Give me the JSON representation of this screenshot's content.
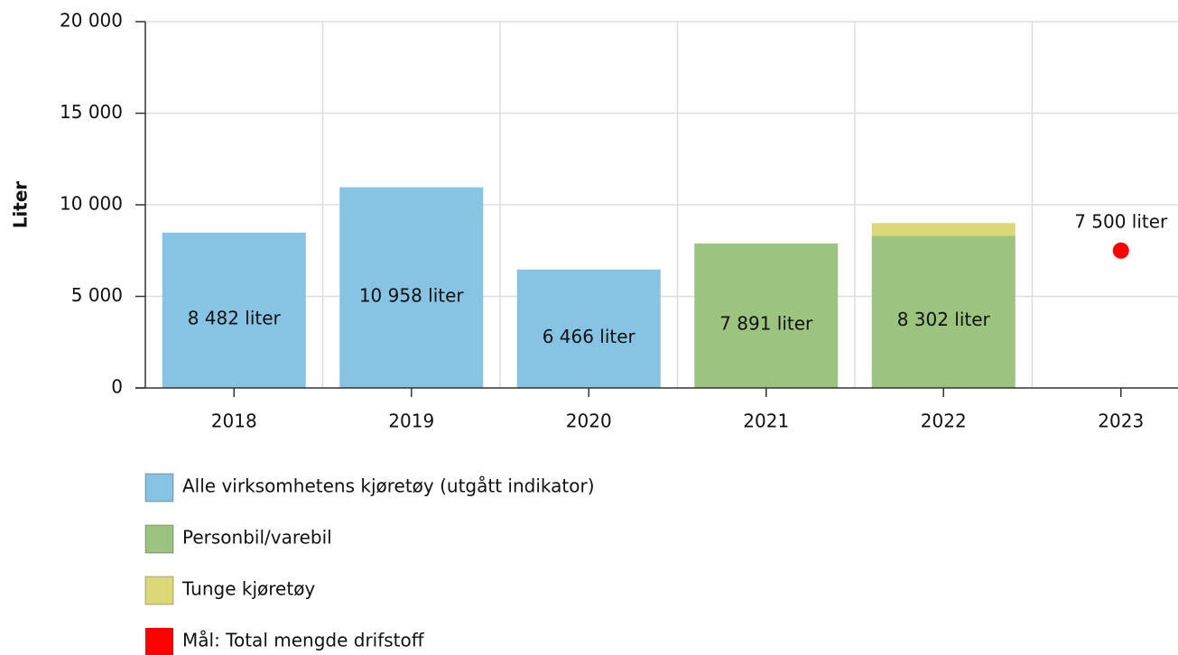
{
  "chart_data": {
    "type": "bar",
    "stacked": true,
    "y_label": "Liter",
    "categories": [
      "2018",
      "2019",
      "2020",
      "2021",
      "2022",
      "2023"
    ],
    "series": [
      {
        "name": "Alle virksomhetens kjøretøy (utgått indikator)",
        "color": "#87c3e3",
        "values": [
          8482,
          10958,
          6466,
          null,
          null,
          null
        ],
        "value_labels": [
          "8 482 liter",
          "10 958 liter",
          "6 466 liter",
          null,
          null,
          null
        ]
      },
      {
        "name": "Personbil/varebil",
        "color": "#9cc47f",
        "values": [
          null,
          null,
          null,
          7891,
          8302,
          null
        ],
        "value_labels": [
          null,
          null,
          null,
          "7 891 liter",
          "8 302 liter",
          null
        ]
      },
      {
        "name": "Tunge kjøretøy",
        "color": "#ddd876",
        "values": [
          null,
          null,
          null,
          null,
          700,
          null
        ]
      },
      {
        "name": "Mål: Total mengde drifstoff",
        "color": "#ff0000",
        "type": "scatter",
        "values": [
          null,
          null,
          null,
          null,
          null,
          7500
        ],
        "value_labels": [
          null,
          null,
          null,
          null,
          null,
          "7 500 liter"
        ]
      }
    ],
    "ylim": [
      0,
      20000
    ],
    "yticks": [
      0,
      {
        "value": 5000,
        "label": "5 000"
      },
      {
        "value": 10000,
        "label": "10 000"
      },
      {
        "value": 15000,
        "label": "15 000"
      },
      {
        "value": 20000,
        "label": "20 000"
      }
    ],
    "grid": true,
    "legend": "bottom"
  }
}
